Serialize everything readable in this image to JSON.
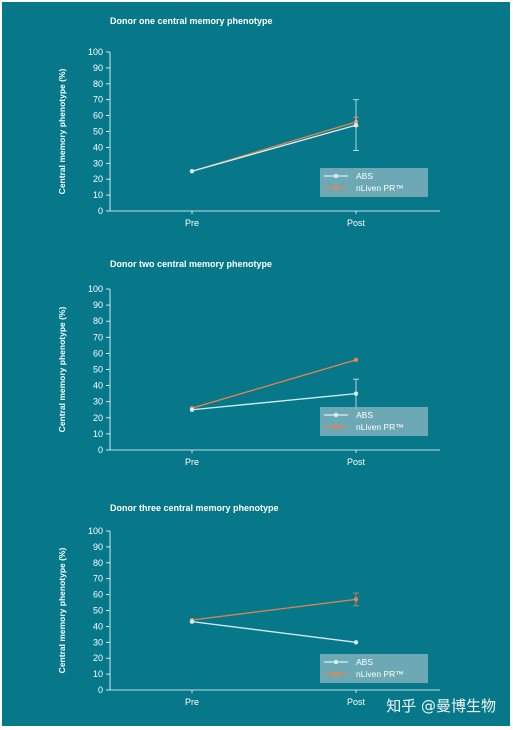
{
  "watermark": "知乎 @曼博生物",
  "colors": {
    "background": "#06788a",
    "axis": "#ffffff",
    "abs": "#d6eef6",
    "nliven": "#e8834e",
    "legend_bg": "#7fb2bb"
  },
  "chart_data": [
    {
      "type": "line",
      "title": "Donor one central memory phenotype",
      "ylabel": "Central memory phenotype (%)",
      "xlabel": "",
      "categories": [
        "Pre",
        "Post"
      ],
      "ylim": [
        0,
        100
      ],
      "yticks": [
        0,
        10,
        20,
        30,
        40,
        50,
        60,
        70,
        80,
        90,
        100
      ],
      "legend_position": "bottom-right",
      "series": [
        {
          "name": "ABS",
          "values": [
            25,
            54
          ],
          "error": [
            0,
            16
          ]
        },
        {
          "name": "nLiven PR™",
          "values": [
            25,
            56
          ],
          "error": [
            0,
            3
          ]
        }
      ]
    },
    {
      "type": "line",
      "title": "Donor two central memory phenotype",
      "ylabel": "Central memory phenotype (%)",
      "xlabel": "",
      "categories": [
        "Pre",
        "Post"
      ],
      "ylim": [
        0,
        100
      ],
      "yticks": [
        0,
        10,
        20,
        30,
        40,
        50,
        60,
        70,
        80,
        90,
        100
      ],
      "legend_position": "bottom-right",
      "series": [
        {
          "name": "ABS",
          "values": [
            25,
            35
          ],
          "error": [
            0,
            9
          ]
        },
        {
          "name": "nLiven PR™",
          "values": [
            26,
            56
          ],
          "error": [
            0,
            0
          ]
        }
      ]
    },
    {
      "type": "line",
      "title": "Donor three central memory phenotype",
      "ylabel": "Central memory phenotype (%)",
      "xlabel": "",
      "categories": [
        "Pre",
        "Post"
      ],
      "ylim": [
        0,
        100
      ],
      "yticks": [
        0,
        10,
        20,
        30,
        40,
        50,
        60,
        70,
        80,
        90,
        100
      ],
      "legend_position": "bottom-right",
      "series": [
        {
          "name": "ABS",
          "values": [
            43,
            30
          ],
          "error": [
            0,
            0
          ]
        },
        {
          "name": "nLiven PR™",
          "values": [
            44,
            57
          ],
          "error": [
            0,
            4
          ]
        }
      ]
    }
  ]
}
